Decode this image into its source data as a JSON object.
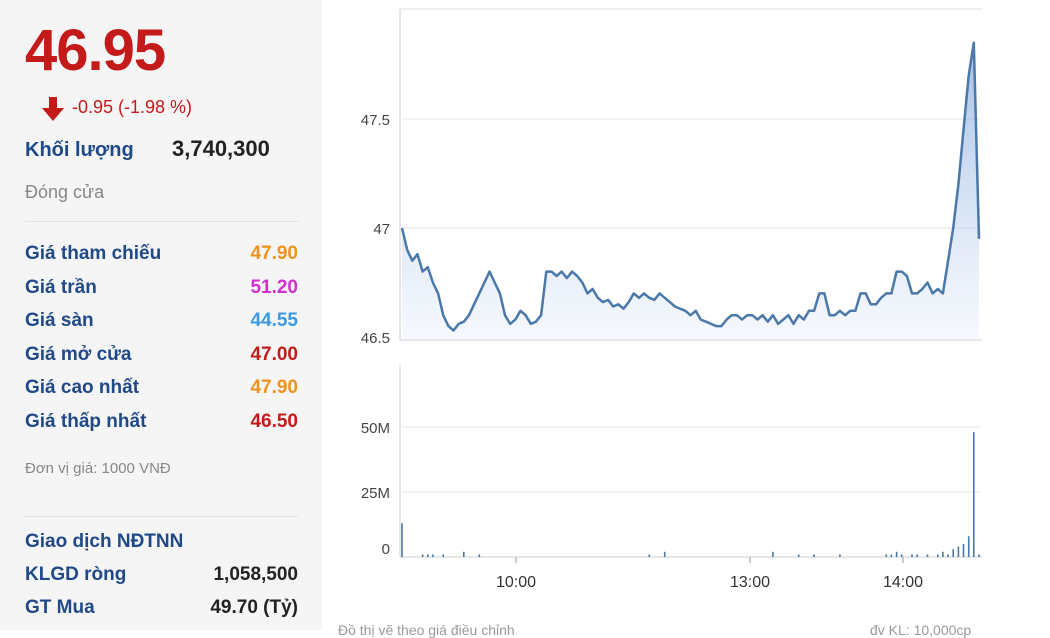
{
  "quote": {
    "price": "46.95",
    "change": "-0.95 (-1.98 %)",
    "volume_label": "Khối lượng",
    "volume_value": "3,740,300",
    "status": "Đóng cửa"
  },
  "price_table": [
    {
      "label": "Giá tham chiếu",
      "value": "47.90",
      "color": "#f0921e"
    },
    {
      "label": "Giá trần",
      "value": "51.20",
      "color": "#d12fd1"
    },
    {
      "label": "Giá sàn",
      "value": "44.55",
      "color": "#3a99e0"
    },
    {
      "label": "Giá mở cửa",
      "value": "47.00",
      "color": "#c41a1a"
    },
    {
      "label": "Giá cao nhất",
      "value": "47.90",
      "color": "#f0921e"
    },
    {
      "label": "Giá thấp nhất",
      "value": "46.50",
      "color": "#c41a1a"
    }
  ],
  "unit_note": "Đơn vị giá: 1000 VNĐ",
  "foreign": {
    "title": "Giao dịch NĐTNN",
    "rows": [
      {
        "label": "KLGD ròng",
        "value": "1,058,500",
        "color": "#222222"
      },
      {
        "label": "GT Mua",
        "value": "49.70 (Tỷ)",
        "color": "#222222"
      }
    ]
  },
  "footer": {
    "left": "Đồ thị vẽ theo giá điều chỉnh",
    "right": "đv KL: 10,000cp"
  },
  "colors": {
    "down": "#c41a1a",
    "line": "#4a78a8",
    "label": "#1f4a87"
  },
  "chart_data": [
    {
      "type": "area",
      "x_ticks": [
        "10:00",
        "13:00",
        "14:00"
      ],
      "y_ticks": [
        "46.5",
        "47",
        "47.5"
      ],
      "ylim": [
        46.5,
        47.95
      ],
      "values": [
        47.0,
        46.9,
        46.85,
        46.88,
        46.8,
        46.82,
        46.75,
        46.7,
        46.6,
        46.55,
        46.53,
        46.56,
        46.57,
        46.6,
        46.65,
        46.7,
        46.75,
        46.8,
        46.75,
        46.7,
        46.6,
        46.56,
        46.58,
        46.62,
        46.6,
        46.56,
        46.57,
        46.6,
        46.8,
        46.8,
        46.78,
        46.8,
        46.77,
        46.8,
        46.78,
        46.75,
        46.7,
        46.72,
        46.68,
        46.66,
        46.67,
        46.64,
        46.65,
        46.63,
        46.66,
        46.7,
        46.68,
        46.7,
        46.68,
        46.67,
        46.7,
        46.68,
        46.66,
        46.64,
        46.63,
        46.62,
        46.6,
        46.62,
        46.58,
        46.57,
        46.56,
        46.55,
        46.55,
        46.58,
        46.6,
        46.6,
        46.58,
        46.6,
        46.6,
        46.58,
        46.6,
        46.57,
        46.6,
        46.56,
        46.58,
        46.6,
        46.56,
        46.6,
        46.58,
        46.62,
        46.62,
        46.7,
        46.7,
        46.6,
        46.6,
        46.62,
        46.6,
        46.62,
        46.62,
        46.7,
        46.7,
        46.65,
        46.65,
        46.68,
        46.7,
        46.7,
        46.8,
        46.8,
        46.78,
        46.7,
        46.7,
        46.72,
        46.75,
        46.7,
        46.72,
        46.7,
        46.85,
        47.0,
        47.2,
        47.45,
        47.7,
        47.85,
        46.95
      ]
    },
    {
      "type": "bar",
      "x_ticks": [
        "10:00",
        "13:00",
        "14:00"
      ],
      "y_ticks": [
        "0",
        "25M",
        "50M"
      ],
      "ylim": [
        0,
        62
      ],
      "values": [
        13,
        0,
        0,
        0,
        1,
        1,
        1,
        0,
        1,
        0,
        0,
        0,
        2,
        0,
        0,
        1,
        0,
        0,
        0,
        0,
        0,
        0,
        0,
        0,
        0,
        0,
        0,
        0,
        0,
        0,
        0,
        0,
        0,
        0,
        0,
        0,
        0,
        0,
        0,
        0,
        0,
        0,
        0,
        0,
        0,
        0,
        0,
        0,
        1,
        0,
        0,
        2,
        0,
        0,
        0,
        0,
        0,
        0,
        0,
        0,
        0,
        0,
        0,
        0,
        0,
        0,
        0,
        0,
        0,
        0,
        0,
        0,
        2,
        0,
        0,
        0,
        0,
        1,
        0,
        0,
        1,
        0,
        0,
        0,
        0,
        1,
        0,
        0,
        0,
        0,
        0,
        0,
        0,
        0,
        1,
        1,
        2,
        1,
        0,
        1,
        1,
        0,
        1,
        0,
        1,
        2,
        1,
        3,
        4,
        5,
        8,
        48,
        1
      ]
    }
  ]
}
